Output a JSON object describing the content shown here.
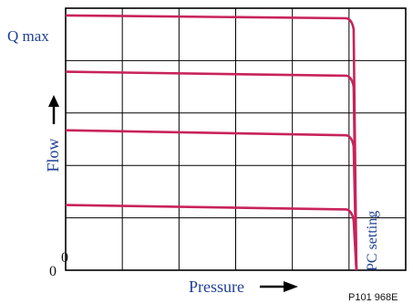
{
  "chart_data": {
    "type": "line",
    "title": "",
    "xlabel": "Pressure",
    "ylabel": "Flow",
    "y_top_label": "Q max",
    "x_origin_label": "0",
    "y_origin_label": "0",
    "curve_annotation": "PC setting",
    "figure_code": "P101 968E",
    "grid": true,
    "xlim": [
      0,
      6
    ],
    "ylim": [
      0,
      4.7
    ],
    "pc_setting_pressure": 5.05,
    "series": [
      {
        "flow_start": 4.57,
        "flow_at_pc": 4.52
      },
      {
        "flow_start": 3.56,
        "flow_at_pc": 3.49
      },
      {
        "flow_start": 2.51,
        "flow_at_pc": 2.42
      },
      {
        "flow_start": 1.17,
        "flow_at_pc": 1.09
      }
    ],
    "colors": {
      "curve": "#c8235a",
      "grid": "#000000",
      "label": "#1f3f94"
    }
  }
}
